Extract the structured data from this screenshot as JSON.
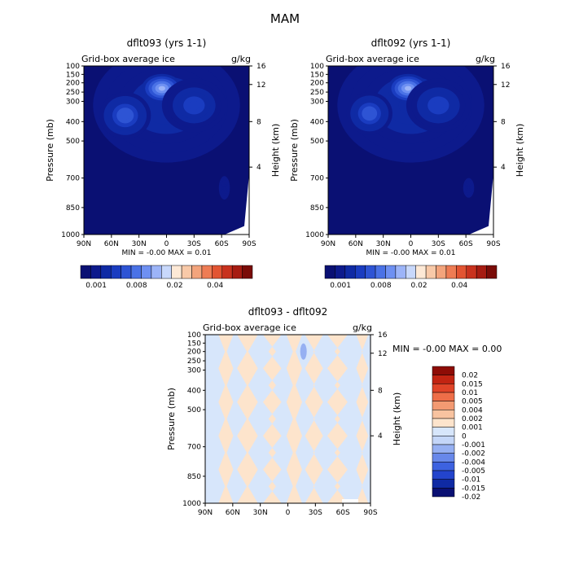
{
  "page_title": "MAM",
  "colors": {
    "seq": [
      "#0a1073",
      "#0d1a8c",
      "#0f2aa4",
      "#1a3cc0",
      "#2e54d4",
      "#4a72e6",
      "#6e90f2",
      "#9cb4f8",
      "#c8d8fb",
      "#fde9d6",
      "#f8c9a8",
      "#f3a47c",
      "#ee7c54",
      "#e25432",
      "#c8321e",
      "#a61c12",
      "#7a0c08"
    ],
    "diff": [
      "#0a1073",
      "#0f2aa4",
      "#2344cc",
      "#3d62e0",
      "#6888ea",
      "#96b0f2",
      "#c4d6f8",
      "#d7e6fb",
      "#fde4cc",
      "#f8c3a0",
      "#f39a72",
      "#ee6e48",
      "#e04428",
      "#c22412",
      "#8e0c06"
    ],
    "zero_pos": "#fde4cc",
    "zero_neg": "#d7e6fb",
    "background": "#0a1073"
  },
  "chart_data": [
    {
      "type": "heatmap",
      "id": "p1",
      "title": "dflt093 (yrs 1-1)",
      "subtitle": "Grid-box average ice",
      "units": "g/kg",
      "ylabel": "Pressure (mb)",
      "ylabel_right": "Height (km)",
      "x_ticks": [
        "90N",
        "60N",
        "30N",
        "0",
        "30S",
        "60S",
        "90S"
      ],
      "y_ticks": [
        100,
        150,
        200,
        250,
        300,
        400,
        500,
        700,
        850,
        1000
      ],
      "y_ticks_right": [
        16,
        12,
        8,
        4
      ],
      "stats": "MIN = -0.00   MAX =   0.01",
      "colorbar_ticks": [
        "0.001",
        "0.008",
        "0.02",
        "0.04"
      ],
      "features": [
        {
          "lat": 0,
          "p": 320,
          "rx": 80,
          "rp": 310,
          "value": 0.003
        },
        {
          "lat": 5,
          "p": 230,
          "rx": 22,
          "rp": 80,
          "value": 0.008
        },
        {
          "lat": 45,
          "p": 370,
          "rx": 28,
          "rp": 120,
          "value": 0.005
        },
        {
          "lat": -30,
          "p": 320,
          "rx": 35,
          "rp": 140,
          "value": 0.004
        },
        {
          "lat": -63,
          "p": 750,
          "rx": 6,
          "rp": 60,
          "value": 0.002
        }
      ]
    },
    {
      "type": "heatmap",
      "id": "p2",
      "title": "dflt092 (yrs 1-1)",
      "subtitle": "Grid-box average ice",
      "units": "g/kg",
      "ylabel": "Pressure (mb)",
      "ylabel_right": "Height (km)",
      "x_ticks": [
        "90N",
        "60N",
        "30N",
        "0",
        "30S",
        "60S",
        "90S"
      ],
      "y_ticks": [
        100,
        150,
        200,
        250,
        300,
        400,
        500,
        700,
        850,
        1000
      ],
      "y_ticks_right": [
        16,
        12,
        8,
        4
      ],
      "stats": "MIN = -0.00   MAX =   0.01",
      "colorbar_ticks": [
        "0.001",
        "0.008",
        "0.02",
        "0.04"
      ],
      "features": [
        {
          "lat": 0,
          "p": 320,
          "rx": 80,
          "rp": 310,
          "value": 0.003
        },
        {
          "lat": 3,
          "p": 230,
          "rx": 22,
          "rp": 80,
          "value": 0.008
        },
        {
          "lat": 45,
          "p": 360,
          "rx": 25,
          "rp": 110,
          "value": 0.005
        },
        {
          "lat": -30,
          "p": 320,
          "rx": 35,
          "rp": 140,
          "value": 0.004
        },
        {
          "lat": -63,
          "p": 750,
          "rx": 6,
          "rp": 50,
          "value": 0.002
        }
      ]
    },
    {
      "type": "heatmap",
      "id": "diff",
      "title": "dflt093 - dflt092",
      "subtitle": "Grid-box average ice",
      "units": "g/kg",
      "ylabel": "Pressure (mb)",
      "ylabel_right": "Height (km)",
      "x_ticks": [
        "90N",
        "60N",
        "30N",
        "0",
        "30S",
        "60S",
        "90S"
      ],
      "y_ticks": [
        100,
        150,
        200,
        250,
        300,
        400,
        500,
        700,
        850,
        1000
      ],
      "y_ticks_right": [
        16,
        12,
        8,
        4
      ],
      "stats": "MIN =   -0.00   MAX =     0.00",
      "colorbar_ticks": [
        "0.02",
        "0.015",
        "0.01",
        "0.005",
        "0.004",
        "0.002",
        "0.001",
        "0",
        "-0.001",
        "-0.002",
        "-0.004",
        "-0.005",
        "-0.01",
        "-0.015",
        "-0.02"
      ],
      "positive_bands_lat": [
        [
          72,
          63
        ],
        [
          50,
          38
        ],
        [
          20,
          14
        ],
        [
          -2,
          -12
        ],
        [
          -24,
          -33
        ],
        [
          -50,
          -58
        ],
        [
          -78,
          -84
        ]
      ],
      "negative_spot": {
        "lat": -17,
        "p": 200
      }
    }
  ]
}
